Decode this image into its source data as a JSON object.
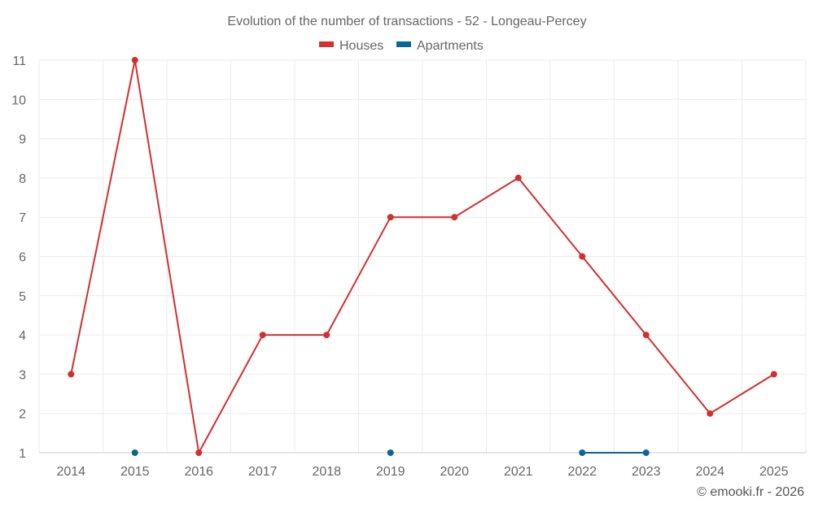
{
  "chart_data": {
    "type": "line",
    "title": "Evolution of the number of transactions - 52 - Longeau-Percey",
    "categories": [
      "2014",
      "2015",
      "2016",
      "2017",
      "2018",
      "2019",
      "2020",
      "2021",
      "2022",
      "2023",
      "2024",
      "2025"
    ],
    "series": [
      {
        "name": "Houses",
        "color": "#d32f2f",
        "values": [
          3,
          11,
          1,
          4,
          4,
          7,
          7,
          8,
          6,
          4,
          2,
          3
        ]
      },
      {
        "name": "Apartments",
        "color": "#0d6496",
        "values": [
          null,
          1,
          null,
          null,
          null,
          1,
          null,
          null,
          1,
          1,
          null,
          null
        ]
      }
    ],
    "yticks": [
      "1",
      "2",
      "3",
      "4",
      "5",
      "6",
      "7",
      "8",
      "9",
      "10",
      "11"
    ],
    "ylim": [
      1,
      11
    ],
    "legend": "top-center",
    "grid": true
  },
  "credit": "© emooki.fr - 2026"
}
